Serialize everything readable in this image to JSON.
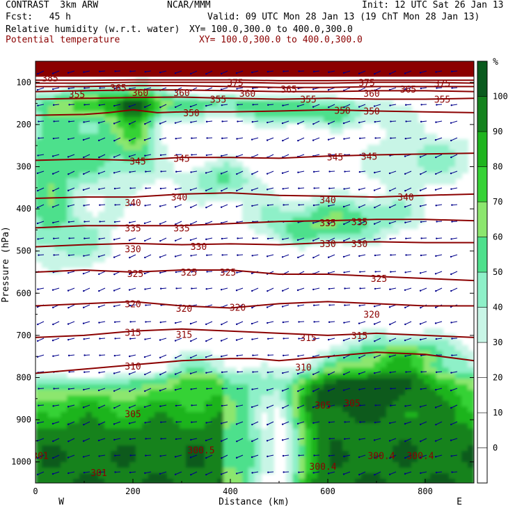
{
  "header": {
    "model": "CONTRAST  3km ARW",
    "org": "NCAR/MMM",
    "init": "Init: 12 UTC Sat 26 Jan 13",
    "fcst": "Fcst:   45 h",
    "valid": "Valid: 09 UTC Mon 28 Jan 13 (19 ChT Mon 28 Jan 13)",
    "field1": "Relative humidity (w.r.t. water)",
    "xy1": "XY= 100.0,300.0 to 400.0,300.0",
    "field2": "Potential temperature",
    "xy2": "XY= 100.0,300.0 to 400.0,300.0"
  },
  "colors": {
    "theta": "#8b0000",
    "rh_scale": [
      "#ffffff",
      "#ffffff",
      "#ffffff",
      "#ffffff",
      "#c8f5e6",
      "#8ef0c8",
      "#4ee08c",
      "#8ce66e",
      "#36d236",
      "#1eb41e",
      "#14821e",
      "#0a5a1e"
    ],
    "wind": "#00008b"
  },
  "chart_data": {
    "type": "heatmap",
    "xlabel": "Distance (km)",
    "ylabel": "Pressure (hPa)",
    "xlim": [
      0,
      900
    ],
    "ylim": [
      1050,
      50
    ],
    "x_ticks": [
      "0",
      "200",
      "400",
      "600",
      "800"
    ],
    "y_ticks": [
      "100",
      "200",
      "300",
      "400",
      "500",
      "600",
      "700",
      "800",
      "900",
      "1000"
    ],
    "x_end_labels": {
      "left": "W",
      "right": "E"
    },
    "colorbar": {
      "unit": "%",
      "levels": [
        "-10",
        "0",
        "10",
        "20",
        "30",
        "40",
        "50",
        "60",
        "70",
        "80",
        "90",
        "100"
      ],
      "labels": [
        "0",
        "10",
        "20",
        "30",
        "40",
        "50",
        "60",
        "70",
        "80",
        "90",
        "100"
      ]
    },
    "theta_contours": [
      {
        "label": "310",
        "x": [
          0,
          100,
          200,
          300,
          400,
          450,
          500,
          600,
          700,
          800,
          900
        ],
        "p": [
          790,
          780,
          770,
          760,
          755,
          755,
          760,
          750,
          740,
          745,
          760
        ]
      },
      {
        "label": "315",
        "x": [
          0,
          100,
          200,
          300,
          400,
          500,
          600,
          700,
          800,
          900
        ],
        "p": [
          705,
          700,
          690,
          685,
          690,
          695,
          700,
          695,
          700,
          705
        ]
      },
      {
        "label": "320",
        "x": [
          0,
          100,
          200,
          300,
          400,
          500,
          600,
          700,
          800,
          900
        ],
        "p": [
          630,
          625,
          620,
          630,
          635,
          625,
          620,
          625,
          630,
          630
        ]
      },
      {
        "label": "325",
        "x": [
          0,
          100,
          200,
          300,
          400,
          500,
          600,
          700,
          800,
          900
        ],
        "p": [
          550,
          545,
          550,
          545,
          545,
          555,
          555,
          560,
          565,
          570
        ]
      },
      {
        "label": "330",
        "x": [
          0,
          100,
          200,
          300,
          400,
          500,
          600,
          700,
          800,
          900
        ],
        "p": [
          490,
          485,
          482,
          485,
          483,
          485,
          480,
          478,
          480,
          480
        ]
      },
      {
        "label": "335",
        "x": [
          0,
          100,
          200,
          300,
          400,
          500,
          600,
          700,
          800,
          900
        ],
        "p": [
          445,
          440,
          440,
          440,
          435,
          430,
          428,
          425,
          425,
          428
        ]
      },
      {
        "label": "340",
        "x": [
          0,
          100,
          200,
          300,
          400,
          500,
          600,
          700,
          800,
          900
        ],
        "p": [
          375,
          372,
          372,
          365,
          362,
          368,
          370,
          372,
          368,
          365
        ]
      },
      {
        "label": "345",
        "x": [
          0,
          100,
          200,
          300,
          400,
          500,
          600,
          700,
          800,
          900
        ],
        "p": [
          285,
          282,
          285,
          278,
          278,
          280,
          275,
          272,
          270,
          268
        ]
      },
      {
        "label": "350",
        "x": [
          0,
          100,
          150,
          200,
          250,
          300,
          400,
          500,
          600,
          700,
          800,
          900
        ],
        "p": [
          178,
          176,
          172,
          165,
          172,
          170,
          170,
          168,
          165,
          168,
          170,
          172
        ]
      },
      {
        "label": "355",
        "x": [
          0,
          100,
          200,
          300,
          400,
          500,
          600,
          700,
          800,
          900
        ],
        "p": [
          140,
          138,
          136,
          135,
          138,
          140,
          138,
          140,
          140,
          138
        ]
      },
      {
        "label": "360",
        "x": [
          0,
          100,
          200,
          300,
          400,
          500,
          600,
          700,
          800,
          900
        ],
        "p": [
          122,
          120,
          118,
          118,
          120,
          122,
          122,
          120,
          120,
          122
        ]
      },
      {
        "label": "365",
        "x": [
          0,
          100,
          200,
          300,
          400,
          500,
          600,
          700,
          800,
          900
        ],
        "p": [
          110,
          110,
          108,
          108,
          110,
          112,
          112,
          110,
          110,
          110
        ]
      },
      {
        "label": "370",
        "x": [
          0,
          100,
          200,
          300,
          400,
          500,
          600,
          700,
          800,
          900
        ],
        "p": [
          102,
          102,
          100,
          100,
          100,
          102,
          102,
          100,
          100,
          102
        ]
      },
      {
        "label": "375",
        "x": [
          0,
          100,
          200,
          300,
          400,
          500,
          600,
          700,
          800,
          900
        ],
        "p": [
          95,
          95,
          94,
          94,
          94,
          96,
          96,
          95,
          95,
          95
        ]
      },
      {
        "label": "385",
        "x": [
          0,
          900
        ],
        "p": [
          85,
          85
        ]
      }
    ],
    "theta_labels": [
      {
        "t": "385",
        "x": 30,
        "p": 90
      },
      {
        "t": "375",
        "x": 410,
        "p": 100
      },
      {
        "t": "375",
        "x": 680,
        "p": 100
      },
      {
        "t": "375",
        "x": 835,
        "p": 102
      },
      {
        "t": "365",
        "x": 170,
        "p": 113
      },
      {
        "t": "365",
        "x": 520,
        "p": 116
      },
      {
        "t": "365",
        "x": 765,
        "p": 116
      },
      {
        "t": "355",
        "x": 85,
        "p": 128
      },
      {
        "t": "360",
        "x": 215,
        "p": 124
      },
      {
        "t": "360",
        "x": 300,
        "p": 124
      },
      {
        "t": "360",
        "x": 435,
        "p": 126
      },
      {
        "t": "360",
        "x": 690,
        "p": 126
      },
      {
        "t": "355",
        "x": 375,
        "p": 140
      },
      {
        "t": "355",
        "x": 560,
        "p": 140
      },
      {
        "t": "355",
        "x": 835,
        "p": 140
      },
      {
        "t": "350",
        "x": 320,
        "p": 172
      },
      {
        "t": "350",
        "x": 630,
        "p": 166
      },
      {
        "t": "350",
        "x": 690,
        "p": 168
      },
      {
        "t": "345",
        "x": 210,
        "p": 287
      },
      {
        "t": "345",
        "x": 300,
        "p": 280
      },
      {
        "t": "345",
        "x": 615,
        "p": 277
      },
      {
        "t": "345",
        "x": 685,
        "p": 275
      },
      {
        "t": "340",
        "x": 200,
        "p": 385
      },
      {
        "t": "340",
        "x": 295,
        "p": 372
      },
      {
        "t": "340",
        "x": 600,
        "p": 378
      },
      {
        "t": "340",
        "x": 760,
        "p": 372
      },
      {
        "t": "335",
        "x": 200,
        "p": 445
      },
      {
        "t": "335",
        "x": 300,
        "p": 445
      },
      {
        "t": "335",
        "x": 600,
        "p": 433
      },
      {
        "t": "335",
        "x": 665,
        "p": 430
      },
      {
        "t": "330",
        "x": 200,
        "p": 495
      },
      {
        "t": "330",
        "x": 335,
        "p": 489
      },
      {
        "t": "330",
        "x": 600,
        "p": 482
      },
      {
        "t": "330",
        "x": 665,
        "p": 482
      },
      {
        "t": "325",
        "x": 205,
        "p": 553
      },
      {
        "t": "325",
        "x": 315,
        "p": 550
      },
      {
        "t": "325",
        "x": 395,
        "p": 550
      },
      {
        "t": "325",
        "x": 705,
        "p": 565
      },
      {
        "t": "320",
        "x": 200,
        "p": 625
      },
      {
        "t": "320",
        "x": 305,
        "p": 636
      },
      {
        "t": "320",
        "x": 415,
        "p": 633
      },
      {
        "t": "320",
        "x": 690,
        "p": 650
      },
      {
        "t": "315",
        "x": 200,
        "p": 693
      },
      {
        "t": "315",
        "x": 305,
        "p": 698
      },
      {
        "t": "315",
        "x": 560,
        "p": 705
      },
      {
        "t": "315",
        "x": 665,
        "p": 700
      },
      {
        "t": "310",
        "x": 200,
        "p": 773
      },
      {
        "t": "310",
        "x": 550,
        "p": 775
      },
      {
        "t": "305",
        "x": 200,
        "p": 886
      },
      {
        "t": "305",
        "x": 590,
        "p": 865
      },
      {
        "t": "305",
        "x": 650,
        "p": 860
      },
      {
        "t": "300.5",
        "x": 340,
        "p": 972
      },
      {
        "t": "300.4",
        "x": 590,
        "p": 1010
      },
      {
        "t": "300.4",
        "x": 710,
        "p": 985
      },
      {
        "t": "300.4",
        "x": 790,
        "p": 985
      },
      {
        "t": "301",
        "x": 130,
        "p": 1025
      },
      {
        "t": "301",
        "x": 10,
        "p": 985
      }
    ]
  }
}
